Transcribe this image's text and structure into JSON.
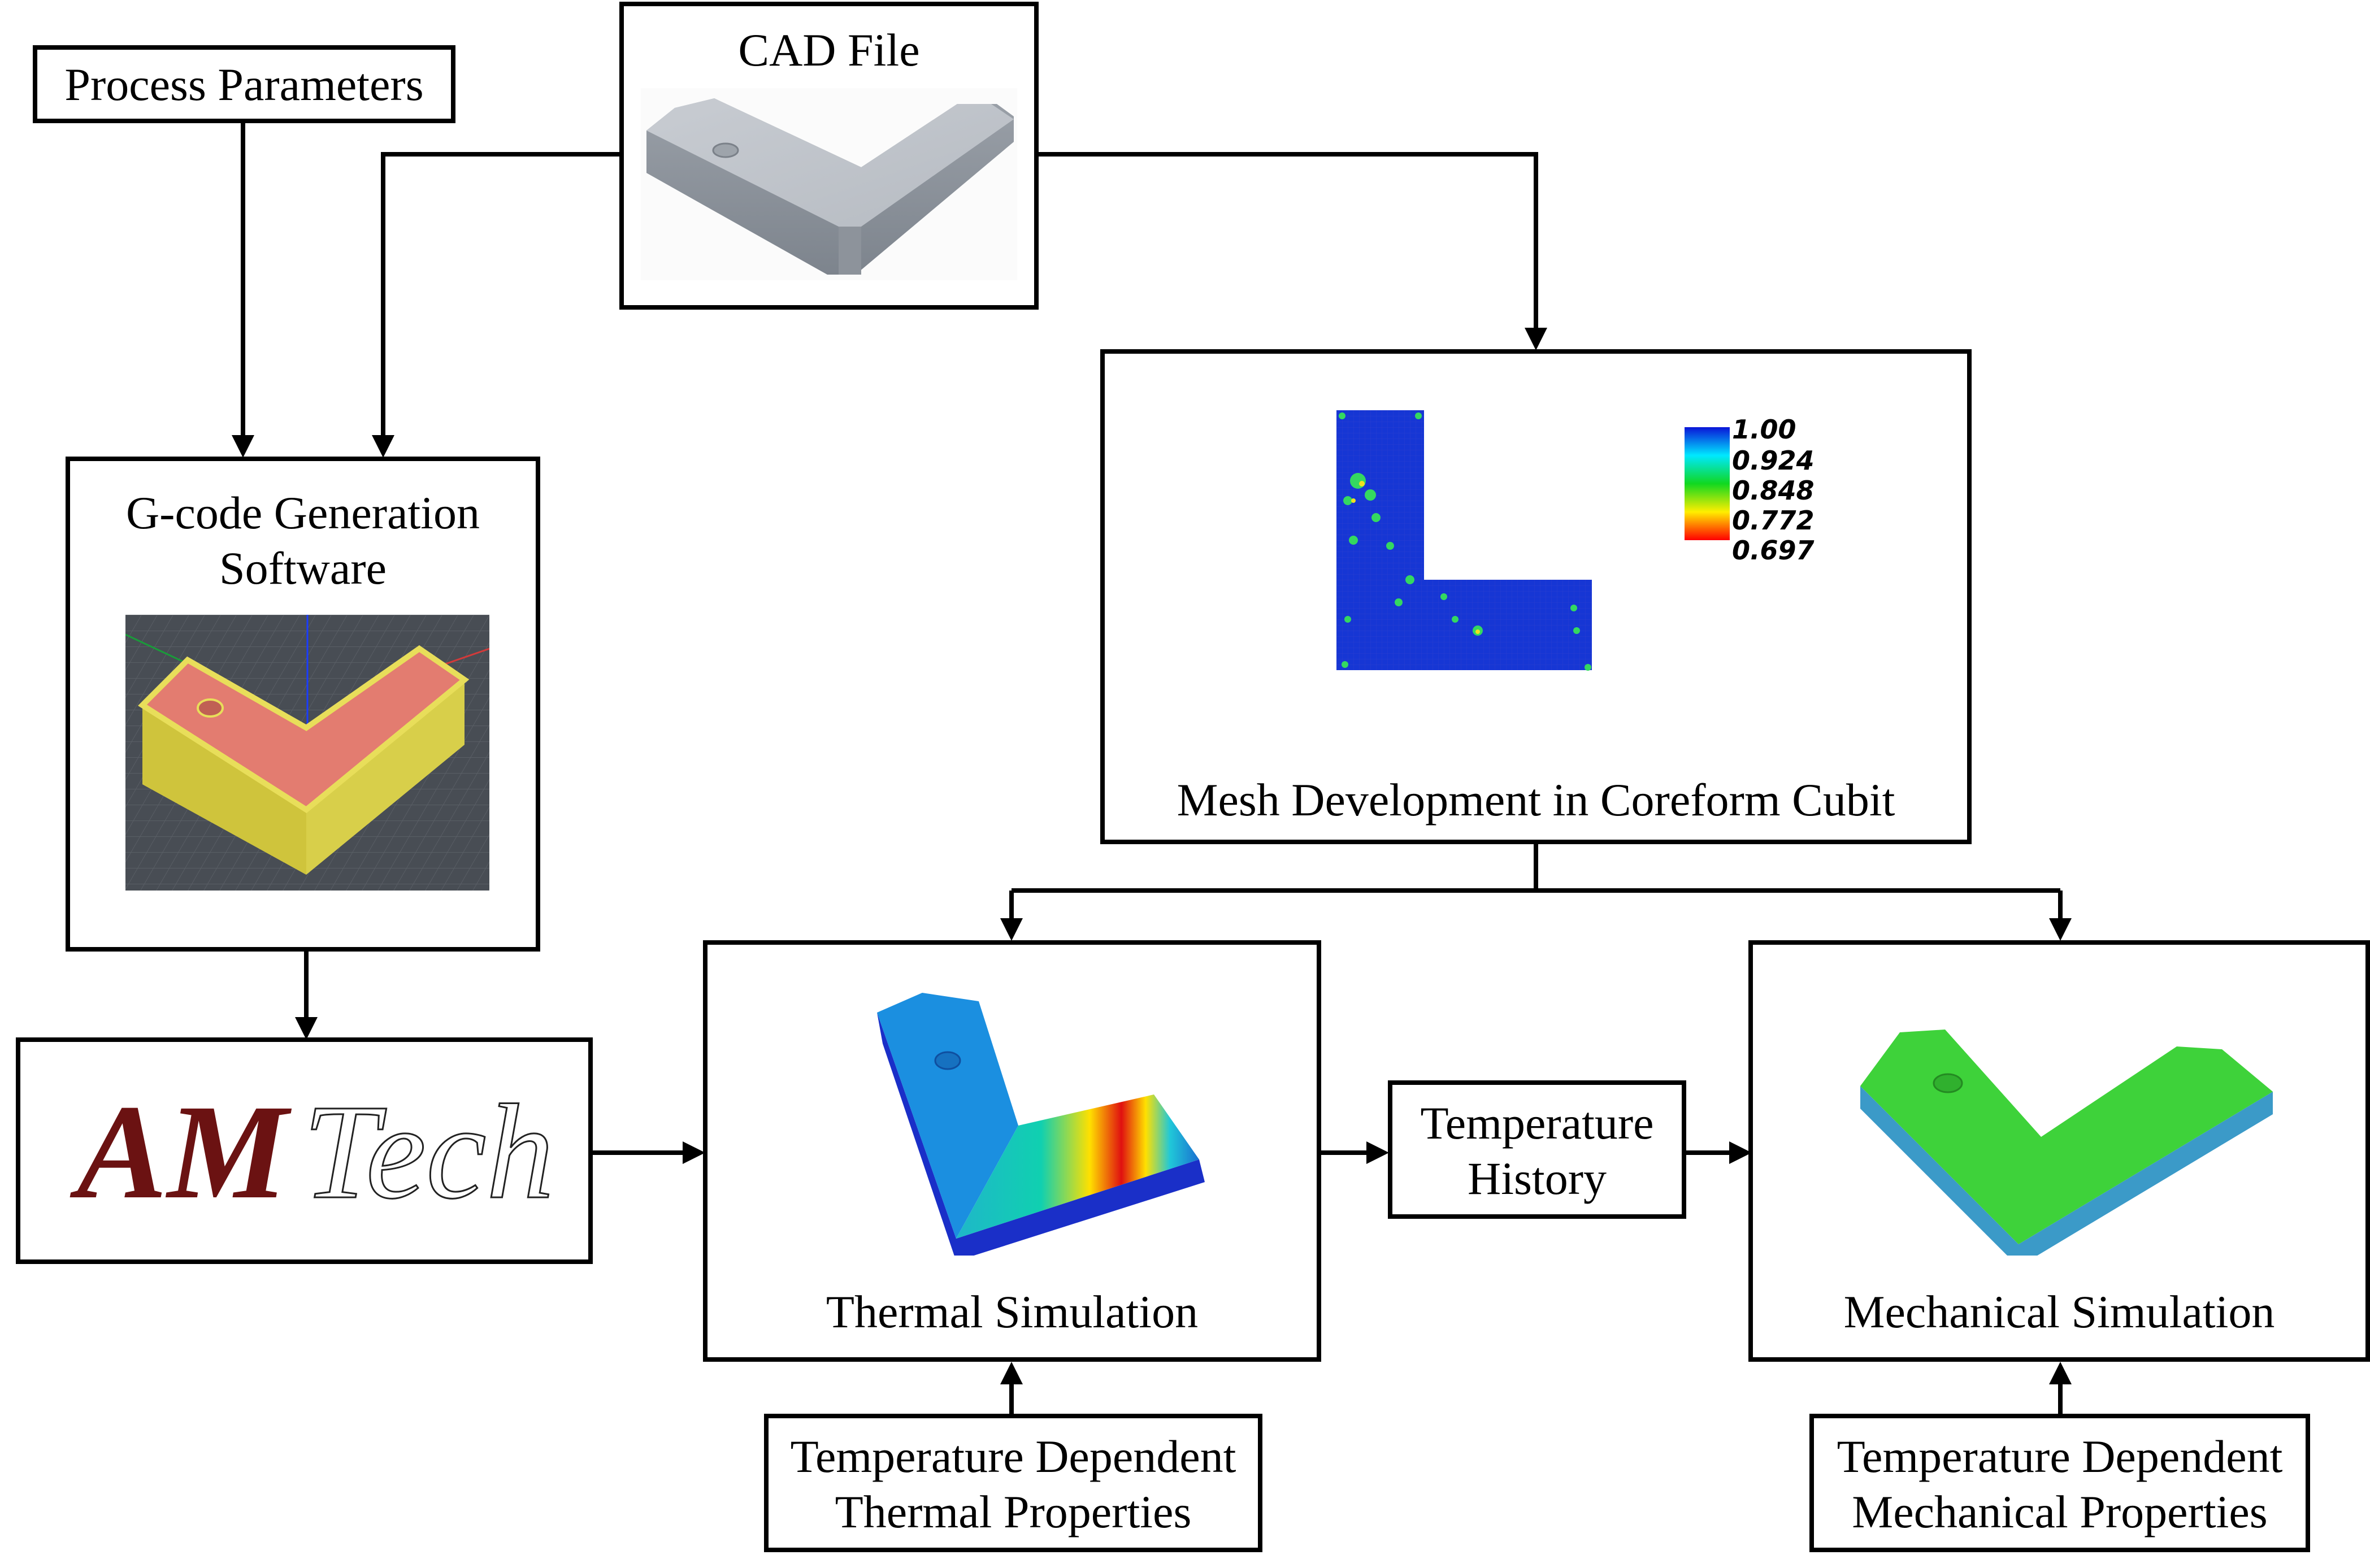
{
  "nodes": {
    "process_parameters": {
      "label": "Process Parameters"
    },
    "cad_file": {
      "label": "CAD File"
    },
    "gcode": {
      "label_line1": "G-code Generation",
      "label_line2": "Software"
    },
    "mesh": {
      "label": "Mesh Development in Coreform Cubit"
    },
    "amtech": {
      "logo_part1": "AM",
      "logo_part2": "Tech"
    },
    "thermal": {
      "label": "Thermal Simulation"
    },
    "temp_history": {
      "label_line1": "Temperature",
      "label_line2": "History"
    },
    "mechanical": {
      "label": "Mechanical Simulation"
    },
    "thermal_props": {
      "label_line1": "Temperature Dependent",
      "label_line2": "Thermal Properties"
    },
    "mechanical_props": {
      "label_line1": "Temperature Dependent",
      "label_line2": "Mechanical Properties"
    }
  },
  "colorbar": {
    "labels": [
      "1.00",
      "0.924",
      "0.848",
      "0.772",
      "0.697"
    ]
  },
  "edges": [
    {
      "from": "process_parameters",
      "to": "gcode"
    },
    {
      "from": "cad_file",
      "to": "gcode"
    },
    {
      "from": "cad_file",
      "to": "mesh"
    },
    {
      "from": "gcode",
      "to": "amtech"
    },
    {
      "from": "amtech",
      "to": "thermal"
    },
    {
      "from": "mesh",
      "to": "thermal"
    },
    {
      "from": "mesh",
      "to": "mechanical"
    },
    {
      "from": "thermal",
      "to": "temp_history"
    },
    {
      "from": "temp_history",
      "to": "mechanical"
    },
    {
      "from": "thermal_props",
      "to": "thermal"
    },
    {
      "from": "mechanical_props",
      "to": "mechanical"
    }
  ],
  "colors": {
    "amtech_logo": "#6b1212",
    "line": "#000000"
  }
}
